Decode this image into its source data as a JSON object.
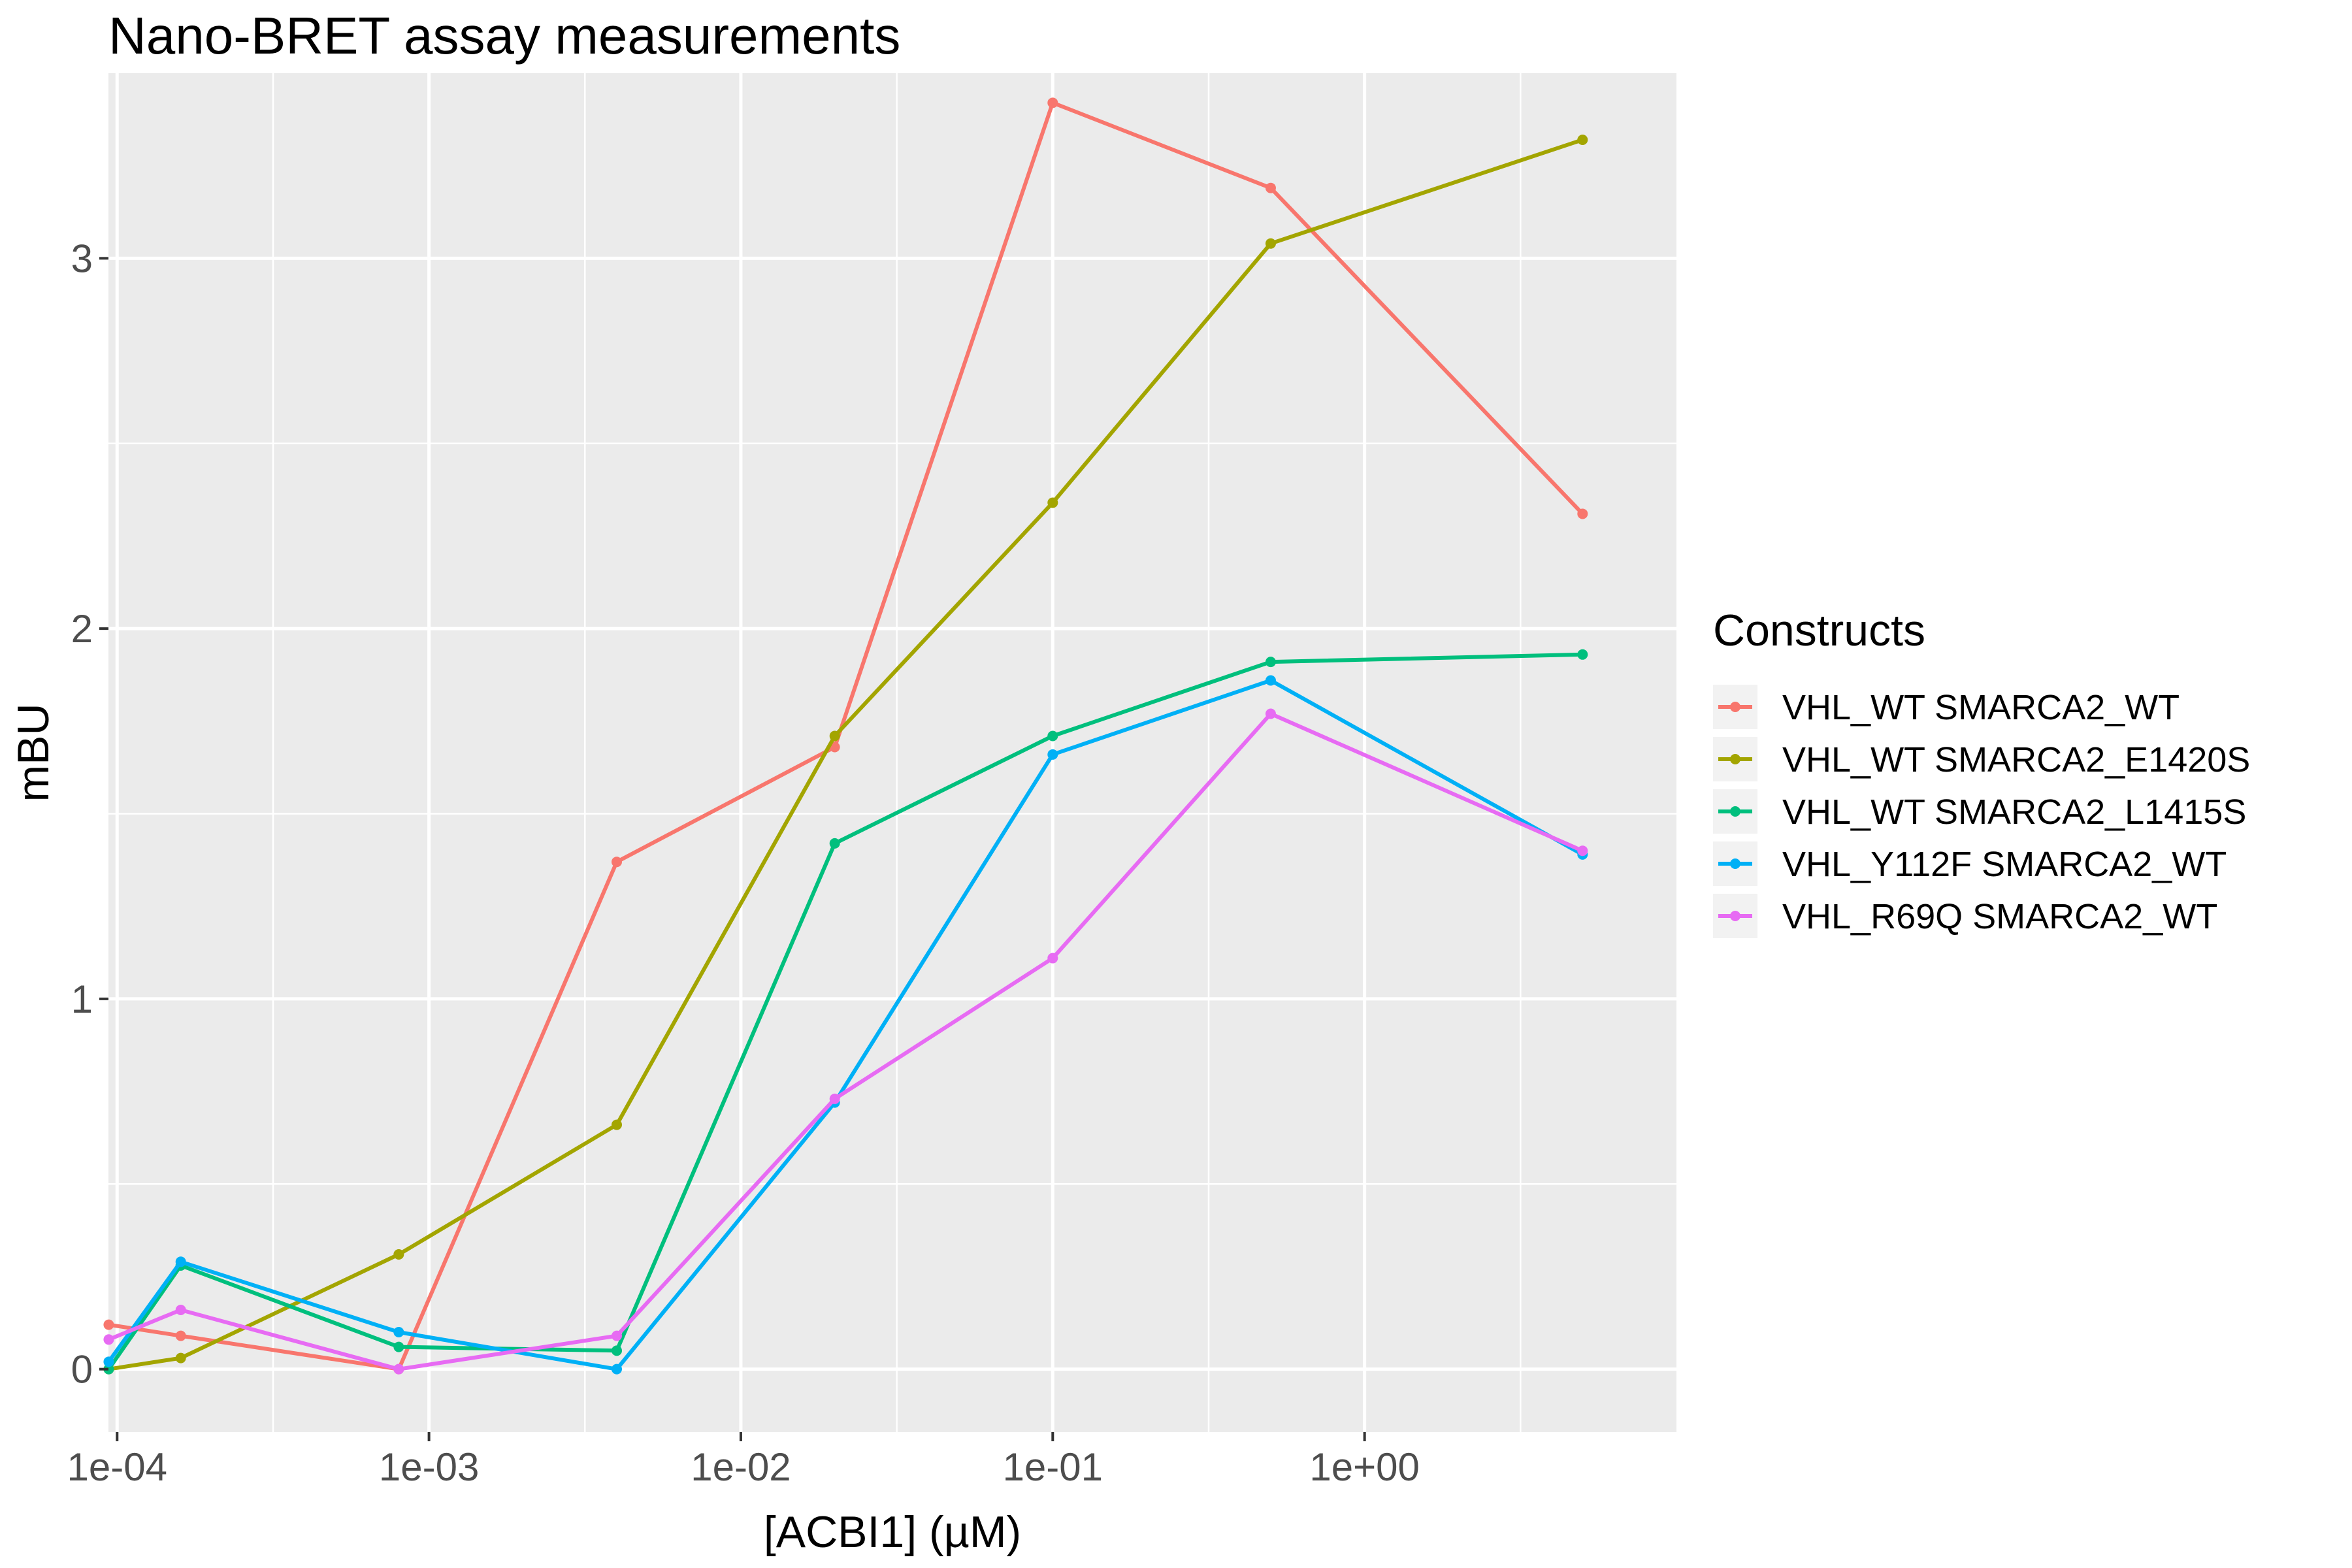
{
  "chart_data": {
    "type": "line",
    "title": "Nano-BRET assay measurements",
    "xlabel": "[ACBI1] (µM)",
    "ylabel": "mBU",
    "x_scale": "log10",
    "xlim": [
      9.38e-05,
      10
    ],
    "ylim": [
      -0.17,
      3.5
    ],
    "x_ticks": [
      0.0001,
      0.001,
      0.01,
      0.1,
      1
    ],
    "x_tick_labels": [
      "1e-04",
      "1e-03",
      "1e-02",
      "1e-01",
      "1e+00"
    ],
    "y_ticks": [
      0,
      1,
      2,
      3
    ],
    "y_tick_labels": [
      "0",
      "1",
      "2",
      "3"
    ],
    "grid": true,
    "legend_title": "Constructs",
    "legend_position": "right",
    "x": [
      9.4e-05,
      0.00016,
      0.0008,
      0.004,
      0.02,
      0.1,
      0.5,
      5
    ],
    "series": [
      {
        "name": "VHL_WT SMARCA2_WT",
        "color": "#F8766D",
        "values": [
          0.12,
          0.09,
          0.0,
          1.37,
          1.68,
          3.42,
          3.19,
          2.31
        ]
      },
      {
        "name": "VHL_WT SMARCA2_E1420S",
        "color": "#A3A500",
        "values": [
          0.0,
          0.03,
          0.31,
          0.66,
          1.71,
          2.34,
          3.04,
          3.32
        ]
      },
      {
        "name": "VHL_WT SMARCA2_L1415S",
        "color": "#00BF7D",
        "values": [
          0.0,
          0.28,
          0.06,
          0.05,
          1.42,
          1.71,
          1.91,
          1.93
        ]
      },
      {
        "name": "VHL_Y112F SMARCA2_WT",
        "color": "#00B0F6",
        "values": [
          0.02,
          0.29,
          0.1,
          0.0,
          0.72,
          1.66,
          1.86,
          1.39
        ]
      },
      {
        "name": "VHL_R69Q SMARCA2_WT",
        "color": "#E76BF3",
        "values": [
          0.08,
          0.16,
          0.0,
          0.09,
          0.73,
          1.11,
          1.77,
          1.4
        ]
      }
    ]
  }
}
